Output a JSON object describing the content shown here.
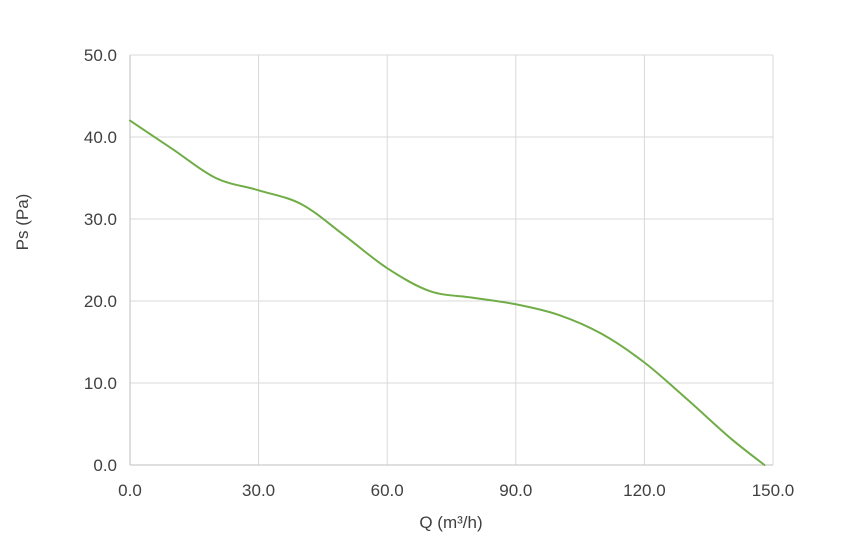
{
  "chart_data": {
    "type": "line",
    "title": "",
    "xlabel": "Q (m³/h)",
    "ylabel": "Ps (Pa)",
    "xlim": [
      0,
      150
    ],
    "ylim": [
      0,
      50
    ],
    "x_ticks": [
      "0.0",
      "30.0",
      "60.0",
      "90.0",
      "120.0",
      "150.0"
    ],
    "y_ticks": [
      "0.0",
      "10.0",
      "20.0",
      "30.0",
      "40.0",
      "50.0"
    ],
    "grid": true,
    "legend": "none",
    "series": [
      {
        "color": "#70ad47",
        "x": [
          0,
          10,
          20,
          30,
          40,
          50,
          60,
          70,
          80,
          90,
          100,
          110,
          120,
          130,
          140,
          148
        ],
        "y": [
          42.0,
          38.5,
          35.0,
          33.5,
          31.8,
          28.0,
          24.0,
          21.2,
          20.4,
          19.6,
          18.3,
          16.0,
          12.5,
          8.0,
          3.3,
          0.0
        ]
      }
    ]
  }
}
